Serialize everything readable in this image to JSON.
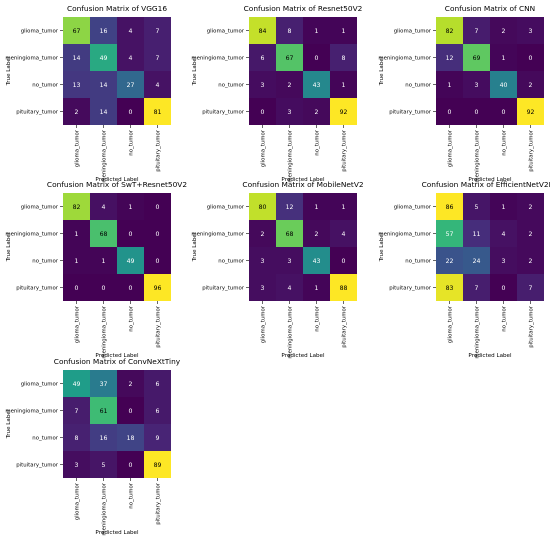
{
  "chart_data": [
    {
      "type": "heatmap",
      "title": "Confusion Matrix of VGG16",
      "xlabel": "Predicted Label",
      "ylabel": "True Label",
      "categories": [
        "glioma_tumor",
        "meningioma_tumor",
        "no_tumor",
        "pituitary_tumor"
      ],
      "values": [
        [
          67,
          16,
          4,
          7
        ],
        [
          14,
          49,
          4,
          7
        ],
        [
          13,
          14,
          27,
          4
        ],
        [
          2,
          14,
          0,
          81
        ]
      ]
    },
    {
      "type": "heatmap",
      "title": "Confusion Matrix of Resnet50V2",
      "xlabel": "Predicted Label",
      "ylabel": "True Label",
      "categories": [
        "glioma_tumor",
        "meningioma_tumor",
        "no_tumor",
        "pituitary_tumor"
      ],
      "values": [
        [
          84,
          8,
          1,
          1
        ],
        [
          6,
          67,
          0,
          8
        ],
        [
          3,
          2,
          43,
          1
        ],
        [
          0,
          3,
          2,
          92
        ]
      ]
    },
    {
      "type": "heatmap",
      "title": "Confusion Matrix of CNN",
      "xlabel": "Predicted Label",
      "ylabel": "True Label",
      "categories": [
        "glioma_tumor",
        "meningioma_tumor",
        "no_tumor",
        "pituitary_tumor"
      ],
      "values": [
        [
          82,
          7,
          2,
          3
        ],
        [
          12,
          69,
          1,
          0
        ],
        [
          1,
          3,
          40,
          2
        ],
        [
          0,
          0,
          0,
          92
        ]
      ]
    },
    {
      "type": "heatmap",
      "title": "Confusion Matrix of SwT+Resnet50V2",
      "xlabel": "Predicted Label",
      "ylabel": "True Label",
      "categories": [
        "glioma_tumor",
        "meningioma_tumor",
        "no_tumor",
        "pituitary_tumor"
      ],
      "values": [
        [
          82,
          4,
          1,
          0
        ],
        [
          1,
          68,
          0,
          0
        ],
        [
          1,
          1,
          49,
          0
        ],
        [
          0,
          0,
          0,
          96
        ]
      ]
    },
    {
      "type": "heatmap",
      "title": "Confusion Matrix of MobileNetV2",
      "xlabel": "Predicted Label",
      "ylabel": "True Label",
      "categories": [
        "glioma_tumor",
        "meningioma_tumor",
        "no_tumor",
        "pituitary_tumor"
      ],
      "values": [
        [
          80,
          12,
          1,
          1
        ],
        [
          2,
          68,
          2,
          4
        ],
        [
          3,
          3,
          43,
          0
        ],
        [
          3,
          4,
          1,
          88
        ]
      ]
    },
    {
      "type": "heatmap",
      "title": "Confusion Matrix of EfficientNetV2B3",
      "xlabel": "Predicted Label",
      "ylabel": "True Label",
      "categories": [
        "glioma_tumor",
        "meningioma_tumor",
        "no_tumor",
        "pituitary_tumor"
      ],
      "values": [
        [
          86,
          5,
          1,
          2
        ],
        [
          57,
          11,
          4,
          2
        ],
        [
          22,
          24,
          3,
          2
        ],
        [
          83,
          7,
          0,
          7
        ]
      ]
    },
    {
      "type": "heatmap",
      "title": "Confusion Matrix of ConvNeXtTiny",
      "xlabel": "Predicted Label",
      "ylabel": "True Label",
      "categories": [
        "glioma_tumor",
        "meningioma_tumor",
        "no_tumor",
        "pituitary_tumor"
      ],
      "values": [
        [
          49,
          37,
          2,
          6
        ],
        [
          7,
          61,
          0,
          6
        ],
        [
          8,
          16,
          18,
          9
        ],
        [
          3,
          5,
          0,
          89
        ]
      ]
    }
  ],
  "colormap": "viridis",
  "colors": {
    "dark_text": "#000000",
    "light_text": "#ffffff",
    "cell_border": "#ffffff"
  }
}
